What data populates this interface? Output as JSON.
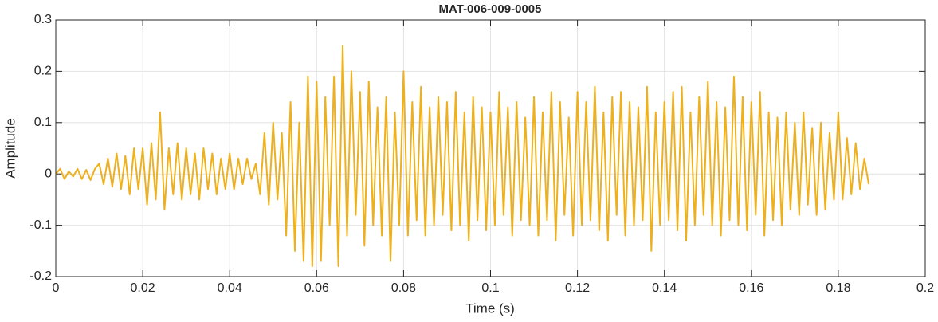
{
  "chart_data": {
    "type": "line",
    "title": "MAT-006-009-0005",
    "x_label": "Time (s)",
    "y_label": "Amplitude",
    "xlim": [
      0,
      0.2
    ],
    "xticks": [
      0,
      0.02,
      0.04,
      0.06,
      0.08,
      0.1,
      0.12,
      0.14,
      0.16,
      0.18,
      0.2
    ],
    "ylim": [
      -0.2,
      0.3
    ],
    "yticks": [
      -0.2,
      -0.1,
      0,
      0.1,
      0.2,
      0.3
    ],
    "grid": true,
    "x": [
      0,
      0.001,
      0.002,
      0.003,
      0.004,
      0.005,
      0.006,
      0.007,
      0.008,
      0.009,
      0.01,
      0.011,
      0.012,
      0.013,
      0.014,
      0.015,
      0.016,
      0.017,
      0.018,
      0.019,
      0.02,
      0.021,
      0.022,
      0.023,
      0.024,
      0.025,
      0.026,
      0.027,
      0.028,
      0.029,
      0.03,
      0.031,
      0.032,
      0.033,
      0.034,
      0.035,
      0.036,
      0.037,
      0.038,
      0.039,
      0.04,
      0.041,
      0.042,
      0.043,
      0.044,
      0.045,
      0.046,
      0.047,
      0.048,
      0.049,
      0.05,
      0.051,
      0.052,
      0.053,
      0.054,
      0.055,
      0.056,
      0.057,
      0.058,
      0.059,
      0.06,
      0.061,
      0.062,
      0.063,
      0.064,
      0.065,
      0.066,
      0.067,
      0.068,
      0.069,
      0.07,
      0.071,
      0.072,
      0.073,
      0.074,
      0.075,
      0.076,
      0.077,
      0.078,
      0.079,
      0.08,
      0.081,
      0.082,
      0.083,
      0.084,
      0.085,
      0.086,
      0.087,
      0.088,
      0.089,
      0.09,
      0.091,
      0.092,
      0.093,
      0.094,
      0.095,
      0.096,
      0.097,
      0.098,
      0.099,
      0.1,
      0.101,
      0.102,
      0.103,
      0.104,
      0.105,
      0.106,
      0.107,
      0.108,
      0.109,
      0.11,
      0.111,
      0.112,
      0.113,
      0.114,
      0.115,
      0.116,
      0.117,
      0.118,
      0.119,
      0.12,
      0.121,
      0.122,
      0.123,
      0.124,
      0.125,
      0.126,
      0.127,
      0.128,
      0.129,
      0.13,
      0.131,
      0.132,
      0.133,
      0.134,
      0.135,
      0.136,
      0.137,
      0.138,
      0.139,
      0.14,
      0.141,
      0.142,
      0.143,
      0.144,
      0.145,
      0.146,
      0.147,
      0.148,
      0.149,
      0.15,
      0.151,
      0.152,
      0.153,
      0.154,
      0.155,
      0.156,
      0.157,
      0.158,
      0.159,
      0.16,
      0.161,
      0.162,
      0.163,
      0.164,
      0.165,
      0.166,
      0.167,
      0.168,
      0.169,
      0.17,
      0.171,
      0.172,
      0.173,
      0.174,
      0.175,
      0.176,
      0.177,
      0.178,
      0.179,
      0.18,
      0.181,
      0.182,
      0.183,
      0.184,
      0.185,
      0.186,
      0.187
    ],
    "series": [
      {
        "color": "#edb120",
        "values": [
          0,
          0.01,
          -0.01,
          0.005,
          -0.005,
          0.01,
          -0.01,
          0.008,
          -0.012,
          0.01,
          0.02,
          -0.02,
          0.03,
          -0.025,
          0.04,
          -0.03,
          0.035,
          -0.04,
          0.05,
          -0.03,
          0.05,
          -0.06,
          0.06,
          -0.05,
          0.12,
          -0.07,
          0.05,
          -0.04,
          0.06,
          -0.05,
          0.05,
          -0.04,
          0.04,
          -0.05,
          0.05,
          -0.03,
          0.04,
          -0.04,
          0.03,
          -0.03,
          0.04,
          -0.03,
          0.03,
          -0.02,
          0.03,
          -0.01,
          0.02,
          -0.04,
          0.08,
          -0.06,
          0.1,
          -0.05,
          0.08,
          -0.12,
          0.14,
          -0.15,
          0.1,
          -0.17,
          0.19,
          -0.18,
          0.18,
          -0.17,
          0.15,
          -0.1,
          0.19,
          -0.18,
          0.25,
          -0.12,
          0.2,
          -0.08,
          0.16,
          -0.14,
          0.18,
          -0.1,
          0.13,
          -0.12,
          0.15,
          -0.17,
          0.12,
          -0.1,
          0.2,
          -0.12,
          0.14,
          -0.09,
          0.17,
          -0.12,
          0.13,
          -0.1,
          0.15,
          -0.08,
          0.14,
          -0.11,
          0.16,
          -0.1,
          0.12,
          -0.13,
          0.15,
          -0.09,
          0.13,
          -0.11,
          0.12,
          -0.1,
          0.16,
          -0.08,
          0.13,
          -0.12,
          0.14,
          -0.09,
          0.11,
          -0.1,
          0.15,
          -0.12,
          0.12,
          -0.09,
          0.16,
          -0.13,
          0.14,
          -0.08,
          0.11,
          -0.12,
          0.16,
          -0.1,
          0.14,
          -0.09,
          0.17,
          -0.11,
          0.12,
          -0.13,
          0.15,
          -0.08,
          0.16,
          -0.12,
          0.14,
          -0.1,
          0.13,
          -0.09,
          0.17,
          -0.15,
          0.12,
          -0.1,
          0.14,
          -0.09,
          0.16,
          -0.11,
          0.17,
          -0.13,
          0.12,
          -0.1,
          0.15,
          -0.08,
          0.18,
          -0.1,
          0.14,
          -0.12,
          0.13,
          -0.09,
          0.19,
          -0.1,
          0.15,
          -0.11,
          0.14,
          -0.08,
          0.16,
          -0.12,
          0.12,
          -0.09,
          0.11,
          -0.1,
          0.12,
          -0.07,
          0.1,
          -0.08,
          0.12,
          -0.06,
          0.09,
          -0.08,
          0.1,
          -0.07,
          0.08,
          -0.05,
          0.12,
          -0.05,
          0.07,
          -0.04,
          0.06,
          -0.03,
          0.03,
          -0.02
        ]
      }
    ]
  }
}
